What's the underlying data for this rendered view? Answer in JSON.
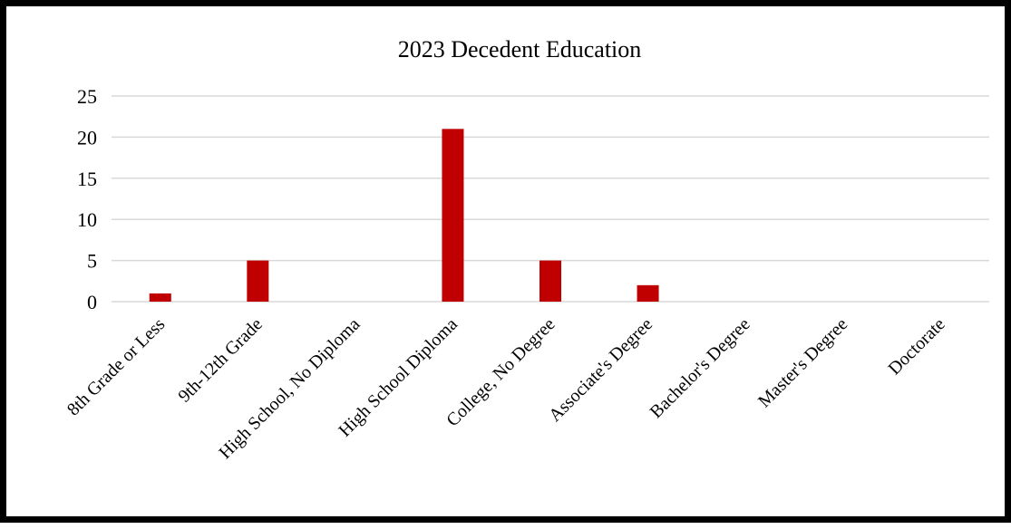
{
  "chart_data": {
    "type": "bar",
    "title": "2023 Decedent Education",
    "xlabel": "",
    "ylabel": "",
    "categories": [
      "8th Grade or Less",
      "9th-12th Grade",
      "High School, No Diploma",
      "High School Diploma",
      "College, No Degree",
      "Associate's Degree",
      "Bachelor's Degree",
      "Master's Degree",
      "Doctorate"
    ],
    "series": [
      {
        "values": [
          1,
          5,
          0,
          21,
          5,
          2,
          0,
          0,
          0
        ],
        "color": "#c00000"
      }
    ],
    "ylim": [
      0,
      25
    ],
    "yticks": [
      0,
      5,
      10,
      15,
      20,
      25
    ],
    "grid": true,
    "gridColor": "#d9d9d9",
    "legend": "none"
  }
}
